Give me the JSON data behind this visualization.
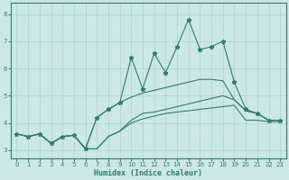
{
  "xlabel": "Humidex (Indice chaleur)",
  "line_color": "#2e7d72",
  "bg_color": "#cce8e5",
  "grid_color": "#a8d4d0",
  "xlim": [
    -0.5,
    23.5
  ],
  "ylim": [
    2.7,
    8.4
  ],
  "yticks": [
    3,
    4,
    5,
    6,
    7,
    8
  ],
  "xticks": [
    0,
    1,
    2,
    3,
    4,
    5,
    6,
    7,
    8,
    9,
    10,
    11,
    12,
    13,
    14,
    15,
    16,
    17,
    18,
    19,
    20,
    21,
    22,
    23
  ],
  "series": [
    {
      "y": [
        3.6,
        3.5,
        3.6,
        3.25,
        3.5,
        3.55,
        3.05,
        3.05,
        3.5,
        3.7,
        4.0,
        4.15,
        4.25,
        4.35,
        4.4,
        4.45,
        4.5,
        4.55,
        4.6,
        4.65,
        4.1,
        4.1,
        4.05,
        4.05
      ],
      "marker": false,
      "smooth": false
    },
    {
      "y": [
        3.6,
        3.5,
        3.6,
        3.25,
        3.5,
        3.55,
        3.05,
        3.05,
        3.5,
        3.7,
        4.1,
        4.35,
        4.4,
        4.5,
        4.6,
        4.7,
        4.8,
        4.9,
        5.0,
        4.85,
        4.45,
        4.35,
        4.1,
        4.1
      ],
      "marker": false,
      "smooth": false
    },
    {
      "y": [
        3.6,
        3.5,
        3.6,
        3.25,
        3.5,
        3.55,
        3.05,
        4.2,
        4.5,
        4.75,
        4.95,
        5.1,
        5.2,
        5.3,
        5.4,
        5.5,
        5.6,
        5.6,
        5.55,
        4.85,
        4.45,
        4.35,
        4.1,
        4.1
      ],
      "marker": false,
      "smooth": false
    },
    {
      "y": [
        3.6,
        3.5,
        3.6,
        3.25,
        3.5,
        3.55,
        3.05,
        4.2,
        4.5,
        4.75,
        6.4,
        5.25,
        6.55,
        5.85,
        6.8,
        7.8,
        6.7,
        6.8,
        7.0,
        5.5,
        4.5,
        4.35,
        4.1,
        4.1
      ],
      "marker": true,
      "smooth": false
    }
  ]
}
